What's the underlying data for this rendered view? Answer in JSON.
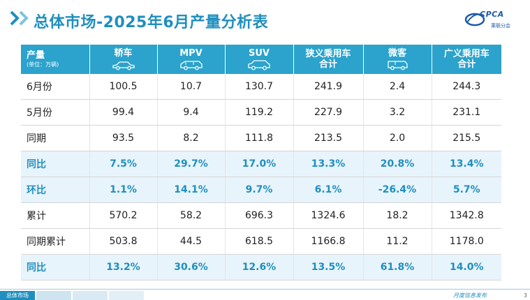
{
  "header": {
    "title": "总体市场-2025年6月产量分析表",
    "logo_text": "CPCA",
    "logo_sub": "乘联分会",
    "accent_color": "#2ba3cc"
  },
  "table": {
    "corner_label": "产量",
    "corner_unit": "(单位：万辆)",
    "columns": [
      {
        "line1": "轿车",
        "line2": "",
        "icon": "sedan-icon"
      },
      {
        "line1": "MPV",
        "line2": "",
        "icon": "mpv-icon"
      },
      {
        "line1": "SUV",
        "line2": "",
        "icon": "suv-icon"
      },
      {
        "line1": "狭义乘用车",
        "line2": "合计",
        "icon": ""
      },
      {
        "line1": "微客",
        "line2": "",
        "icon": "van-icon"
      },
      {
        "line1": "广义乘用车",
        "line2": "合计",
        "icon": ""
      }
    ],
    "rows": [
      {
        "label": "6月份",
        "values": [
          "100.5",
          "10.7",
          "130.7",
          "241.9",
          "2.4",
          "244.3"
        ],
        "highlight": false
      },
      {
        "label": "5月份",
        "values": [
          "99.4",
          "9.4",
          "119.2",
          "227.9",
          "3.2",
          "231.1"
        ],
        "highlight": false
      },
      {
        "label": "同期",
        "values": [
          "93.5",
          "8.2",
          "111.8",
          "213.5",
          "2.0",
          "215.5"
        ],
        "highlight": false
      },
      {
        "label": "同比",
        "values": [
          "7.5%",
          "29.7%",
          "17.0%",
          "13.3%",
          "20.8%",
          "13.4%"
        ],
        "highlight": true
      },
      {
        "label": "环比",
        "values": [
          "1.1%",
          "14.1%",
          "9.7%",
          "6.1%",
          "-26.4%",
          "5.7%"
        ],
        "highlight": true
      },
      {
        "label": "累计",
        "values": [
          "570.2",
          "58.2",
          "696.3",
          "1324.6",
          "18.2",
          "1342.8"
        ],
        "highlight": false
      },
      {
        "label": "同期累计",
        "values": [
          "503.8",
          "44.5",
          "618.5",
          "1166.8",
          "11.2",
          "1178.0"
        ],
        "highlight": false
      },
      {
        "label": "同比",
        "values": [
          "13.2%",
          "30.6%",
          "12.6%",
          "13.5%",
          "61.8%",
          "14.0%"
        ],
        "highlight": true
      }
    ]
  },
  "footer": {
    "active_tab": "总体市场",
    "release_text": "月度信息发布",
    "page_number": "3"
  }
}
